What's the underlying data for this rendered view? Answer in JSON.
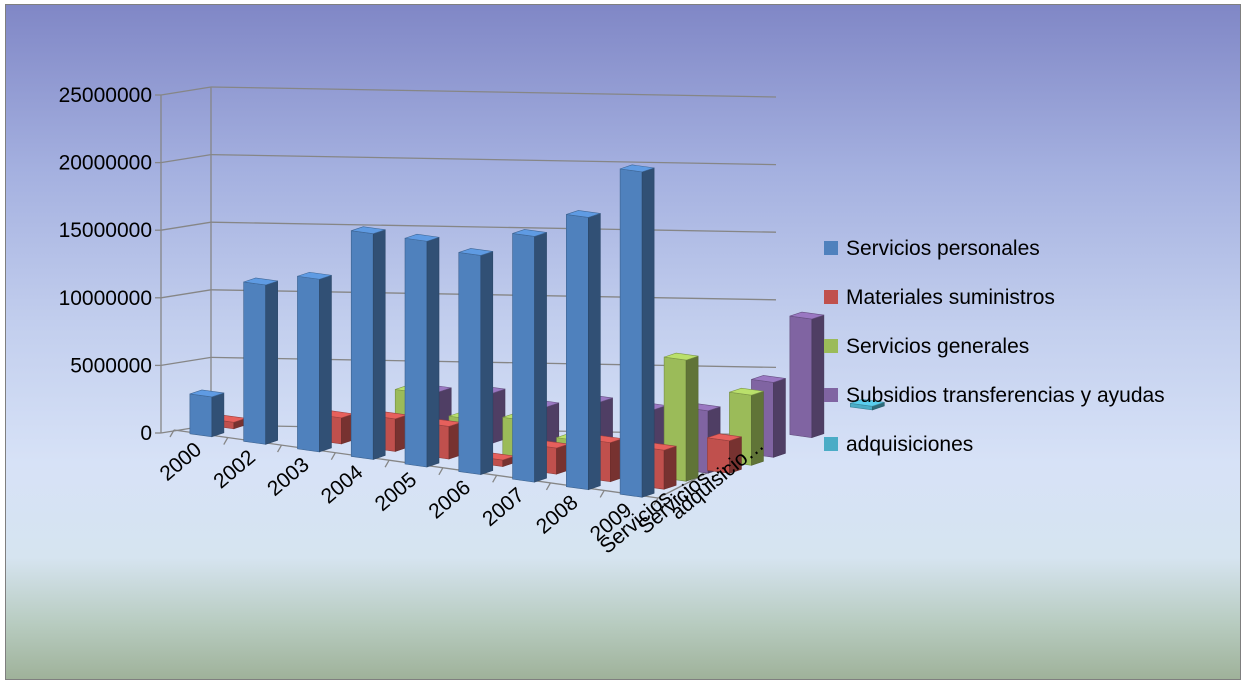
{
  "chart_data": {
    "type": "bar",
    "variant": "3d-clustered-perspective",
    "categories": [
      "2000",
      "2002",
      "2003",
      "2004",
      "2005",
      "2006",
      "2007",
      "2008",
      "2009",
      "Servicios…",
      "Servicios…",
      "adquisicio…"
    ],
    "ylim": [
      0,
      25000000
    ],
    "yticks": [
      "0",
      "5000000",
      "10000000",
      "15000000",
      "20000000",
      "25000000"
    ],
    "grid": true,
    "legend_position": "right",
    "series": [
      {
        "name": "Servicios personales",
        "color": "#4f81bd",
        "values": [
          3000000,
          12000000,
          13000000,
          17000000,
          17000000,
          16500000,
          18500000,
          20500000,
          24500000,
          null,
          null,
          null
        ]
      },
      {
        "name": "Materiales suministros",
        "color": "#c0504d",
        "values": [
          500000,
          null,
          2000000,
          2500000,
          2500000,
          500000,
          2000000,
          3000000,
          3000000,
          2500000,
          null,
          null
        ]
      },
      {
        "name": "Servicios generales",
        "color": "#9bbb59",
        "values": [
          null,
          null,
          1000000,
          4000000,
          2500000,
          3000000,
          2000000,
          2000000,
          9500000,
          5500000,
          null,
          null
        ]
      },
      {
        "name": "Subsidios transferencias  y ayudas",
        "color": "#8064a2",
        "values": [
          null,
          null,
          null,
          3500000,
          4000000,
          3500000,
          4500000,
          4500000,
          5000000,
          6000000,
          9500000,
          null
        ]
      },
      {
        "name": "adquisiciones",
        "color": "#4bacc6",
        "values": [
          null,
          null,
          null,
          null,
          null,
          null,
          null,
          null,
          null,
          null,
          null,
          300000
        ]
      }
    ]
  }
}
